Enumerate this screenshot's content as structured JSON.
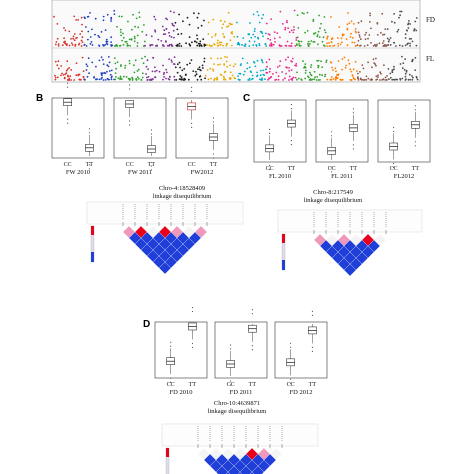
{
  "panel_a": {
    "trait_labels": [
      "FD",
      "FL"
    ],
    "chromosome_colors": [
      "#d73027",
      "#1f3fbf",
      "#2ca02c",
      "#7b3294",
      "#1a1a1a",
      "#e6a800",
      "#00a9c8",
      "#e7298a",
      "#33a02c",
      "#ff7f00",
      "#8c564b",
      "#4d4d4d"
    ]
  },
  "panel_b": {
    "label": "B",
    "plots": [
      {
        "name": "FW 2010",
        "groups": [
          "CC",
          "TT"
        ],
        "cc_median": 0.93,
        "tt_median": 0.17
      },
      {
        "name": "FW 2011",
        "groups": [
          "CC",
          "TT"
        ],
        "cc_median": 0.9,
        "tt_median": 0.15
      },
      {
        "name": "FW2012",
        "groups": [
          "CC",
          "TT"
        ],
        "cc_median": 0.86,
        "tt_median": 0.35
      }
    ],
    "snp_title": "Chro-4:18528409",
    "ld_title": "linkage disequilibrium"
  },
  "panel_c": {
    "label": "C",
    "plots": [
      {
        "name": "FL 2010",
        "groups": [
          "CC",
          "TT"
        ],
        "cc_median": 0.22,
        "tt_median": 0.62
      },
      {
        "name": "FL 2011",
        "groups": [
          "CC",
          "TT"
        ],
        "cc_median": 0.18,
        "tt_median": 0.55
      },
      {
        "name": "FL2012",
        "groups": [
          "CC",
          "TT"
        ],
        "cc_median": 0.25,
        "tt_median": 0.6
      }
    ],
    "snp_title": "Chro-8:217549",
    "ld_title": "linkage disequilibrium"
  },
  "panel_d": {
    "label": "D",
    "plots": [
      {
        "name": "FD 2010",
        "groups": [
          "CC",
          "TT"
        ],
        "cc_median": 0.3,
        "tt_median": 0.92
      },
      {
        "name": "FD 2011",
        "groups": [
          "CC",
          "TT"
        ],
        "cc_median": 0.25,
        "tt_median": 0.88
      },
      {
        "name": "FD 2012",
        "groups": [
          "CC",
          "TT"
        ],
        "cc_median": 0.28,
        "tt_median": 0.85
      }
    ],
    "snp_title": "Chro-10:4639871",
    "ld_title": "linkage disequilibrium"
  },
  "colors": {
    "ld_high": "#1f3fd8",
    "ld_mid": "#ee99bb",
    "ld_red": "#e8001c",
    "box_red": "#c0272d"
  }
}
